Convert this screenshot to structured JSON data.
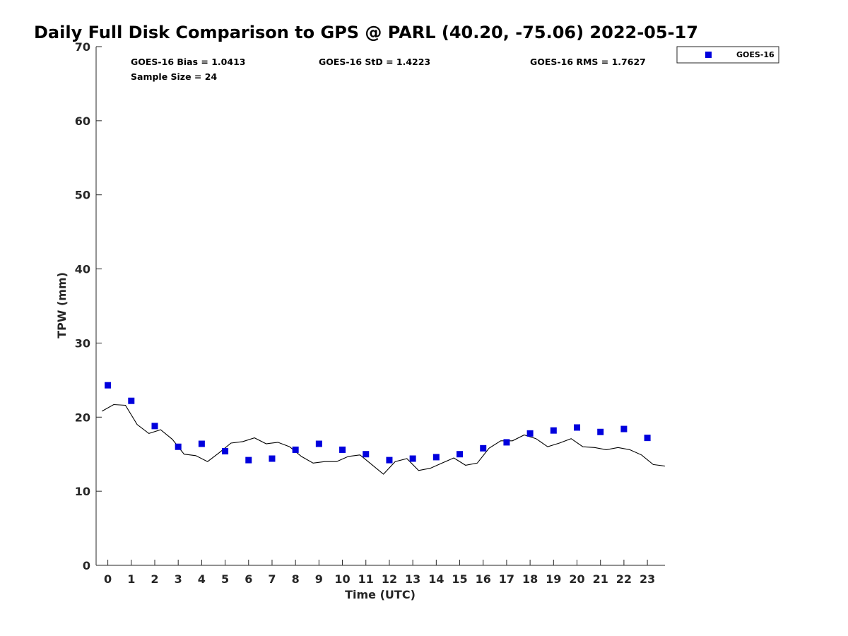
{
  "chart_data": {
    "type": "scatter",
    "title": "Daily Full Disk Comparison to GPS @ PARL (40.20, -75.06) 2022-05-17",
    "xlabel": "Time (UTC)",
    "ylabel": "TPW (mm)",
    "xlim": [
      -0.5,
      23.75
    ],
    "ylim": [
      0,
      70
    ],
    "x_ticks": [
      0,
      1,
      2,
      3,
      4,
      5,
      6,
      7,
      8,
      9,
      10,
      11,
      12,
      13,
      14,
      15,
      16,
      17,
      18,
      19,
      20,
      21,
      22,
      23
    ],
    "y_ticks": [
      0,
      10,
      20,
      30,
      40,
      50,
      60,
      70
    ],
    "grid": false,
    "legend_position": "top-right (outside plot)",
    "stats": {
      "bias": "GOES-16 Bias = 1.0413",
      "std": "GOES-16 StD = 1.4223",
      "rms": "GOES-16 RMS = 1.7627",
      "sample": "Sample Size = 24"
    },
    "series": [
      {
        "name": "GOES-16",
        "kind": "scatter",
        "marker": "square",
        "color": "#0000dd",
        "x": [
          0,
          1,
          2,
          3,
          4,
          5,
          6,
          7,
          8,
          9,
          10,
          11,
          12,
          13,
          14,
          15,
          16,
          17,
          18,
          19,
          20,
          21,
          22,
          23
        ],
        "y": [
          24.3,
          22.2,
          18.8,
          16.0,
          16.4,
          15.4,
          14.2,
          14.4,
          15.6,
          16.4,
          15.6,
          15.0,
          14.2,
          14.4,
          14.6,
          15.0,
          15.8,
          16.6,
          17.8,
          18.2,
          18.6,
          18.0,
          18.4,
          17.2
        ]
      },
      {
        "kind": "line",
        "color": "#000000",
        "x": [
          -0.25,
          0.25,
          0.75,
          1.25,
          1.75,
          2.25,
          2.75,
          3.25,
          3.75,
          4.25,
          4.75,
          5.25,
          5.75,
          6.25,
          6.75,
          7.25,
          7.75,
          8.25,
          8.75,
          9.25,
          9.75,
          10.25,
          10.75,
          11.25,
          11.75,
          12.25,
          12.75,
          13.25,
          13.75,
          14.25,
          14.75,
          15.25,
          15.75,
          16.25,
          16.75,
          17.25,
          17.75,
          18.25,
          18.75,
          19.25,
          19.75,
          20.25,
          20.75,
          21.25,
          21.75,
          22.25,
          22.75,
          23.25,
          23.75
        ],
        "y": [
          20.8,
          21.7,
          21.6,
          19.0,
          17.8,
          18.3,
          17.0,
          15.0,
          14.8,
          14.0,
          15.2,
          16.5,
          16.7,
          17.2,
          16.4,
          16.6,
          16.0,
          14.7,
          13.8,
          14.0,
          14.0,
          14.7,
          14.9,
          13.6,
          12.3,
          14.0,
          14.4,
          12.8,
          13.1,
          13.8,
          14.5,
          13.5,
          13.8,
          15.8,
          16.8,
          16.8,
          17.6,
          17.1,
          16.0,
          16.5,
          17.1,
          16.0,
          15.9,
          15.6,
          15.9,
          15.6,
          14.9,
          13.6,
          13.4
        ]
      }
    ]
  }
}
